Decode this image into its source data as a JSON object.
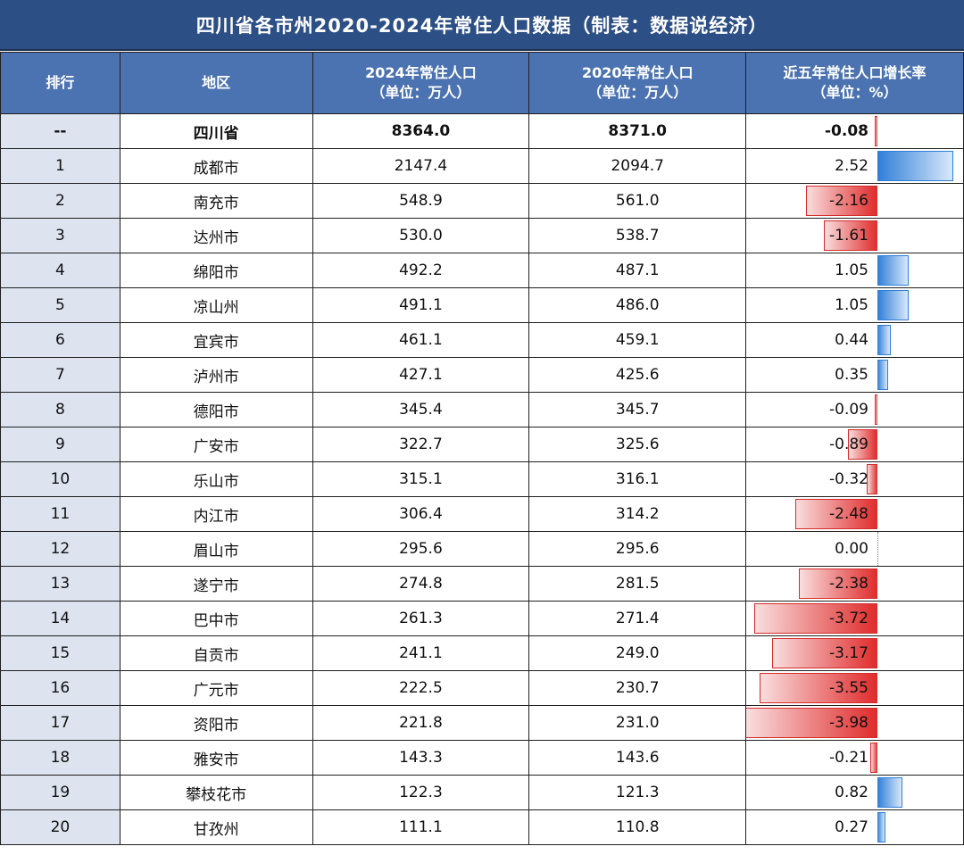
{
  "title": "四川省各市州2020-2024年常住人口数据（制表：数据说经济）",
  "headers": {
    "rank": "排行",
    "region": "地区",
    "pop2024": [
      "2024年常住人口",
      "（单位：万人）"
    ],
    "pop2020": [
      "2020年常住人口",
      "（单位：万人）"
    ],
    "growth": [
      "近五年常住人口增长率",
      "（单位：%）"
    ]
  },
  "colors": {
    "header_bg": "#4c73b1",
    "title_bg": "#2c4f85",
    "positive_bar": "#2f7ed8",
    "negative_bar": "#e02a2a",
    "rank_bg": "#dde4ef"
  },
  "chart_data": {
    "type": "table",
    "columns": [
      "排行",
      "地区",
      "2024年常住人口（单位：万人）",
      "2020年常住人口（单位：万人）",
      "近五年常住人口增长率（单位：%）"
    ],
    "rows": [
      {
        "rank": "--",
        "region": "四川省",
        "pop2024": "8364.0",
        "pop2020": "8371.0",
        "growth": "-0.08",
        "value": -0.08
      },
      {
        "rank": "1",
        "region": "成都市",
        "pop2024": "2147.4",
        "pop2020": "2094.7",
        "growth": "2.52",
        "value": 2.52
      },
      {
        "rank": "2",
        "region": "南充市",
        "pop2024": "548.9",
        "pop2020": "561.0",
        "growth": "-2.16",
        "value": -2.16
      },
      {
        "rank": "3",
        "region": "达州市",
        "pop2024": "530.0",
        "pop2020": "538.7",
        "growth": "-1.61",
        "value": -1.61
      },
      {
        "rank": "4",
        "region": "绵阳市",
        "pop2024": "492.2",
        "pop2020": "487.1",
        "growth": "1.05",
        "value": 1.05
      },
      {
        "rank": "5",
        "region": "凉山州",
        "pop2024": "491.1",
        "pop2020": "486.0",
        "growth": "1.05",
        "value": 1.05
      },
      {
        "rank": "6",
        "region": "宜宾市",
        "pop2024": "461.1",
        "pop2020": "459.1",
        "growth": "0.44",
        "value": 0.44
      },
      {
        "rank": "7",
        "region": "泸州市",
        "pop2024": "427.1",
        "pop2020": "425.6",
        "growth": "0.35",
        "value": 0.35
      },
      {
        "rank": "8",
        "region": "德阳市",
        "pop2024": "345.4",
        "pop2020": "345.7",
        "growth": "-0.09",
        "value": -0.09
      },
      {
        "rank": "9",
        "region": "广安市",
        "pop2024": "322.7",
        "pop2020": "325.6",
        "growth": "-0.89",
        "value": -0.89
      },
      {
        "rank": "10",
        "region": "乐山市",
        "pop2024": "315.1",
        "pop2020": "316.1",
        "growth": "-0.32",
        "value": -0.32
      },
      {
        "rank": "11",
        "region": "内江市",
        "pop2024": "306.4",
        "pop2020": "314.2",
        "growth": "-2.48",
        "value": -2.48
      },
      {
        "rank": "12",
        "region": "眉山市",
        "pop2024": "295.6",
        "pop2020": "295.6",
        "growth": "0.00",
        "value": 0.0
      },
      {
        "rank": "13",
        "region": "遂宁市",
        "pop2024": "274.8",
        "pop2020": "281.5",
        "growth": "-2.38",
        "value": -2.38
      },
      {
        "rank": "14",
        "region": "巴中市",
        "pop2024": "261.3",
        "pop2020": "271.4",
        "growth": "-3.72",
        "value": -3.72
      },
      {
        "rank": "15",
        "region": "自贡市",
        "pop2024": "241.1",
        "pop2020": "249.0",
        "growth": "-3.17",
        "value": -3.17
      },
      {
        "rank": "16",
        "region": "广元市",
        "pop2024": "222.5",
        "pop2020": "230.7",
        "growth": "-3.55",
        "value": -3.55
      },
      {
        "rank": "17",
        "region": "资阳市",
        "pop2024": "221.8",
        "pop2020": "231.0",
        "growth": "-3.98",
        "value": -3.98
      },
      {
        "rank": "18",
        "region": "雅安市",
        "pop2024": "143.3",
        "pop2020": "143.6",
        "growth": "-0.21",
        "value": -0.21
      },
      {
        "rank": "19",
        "region": "攀枝花市",
        "pop2024": "122.3",
        "pop2020": "121.3",
        "growth": "0.82",
        "value": 0.82
      },
      {
        "rank": "20",
        "region": "甘孜州",
        "pop2024": "111.1",
        "pop2020": "110.8",
        "growth": "0.27",
        "value": 0.27
      }
    ]
  }
}
